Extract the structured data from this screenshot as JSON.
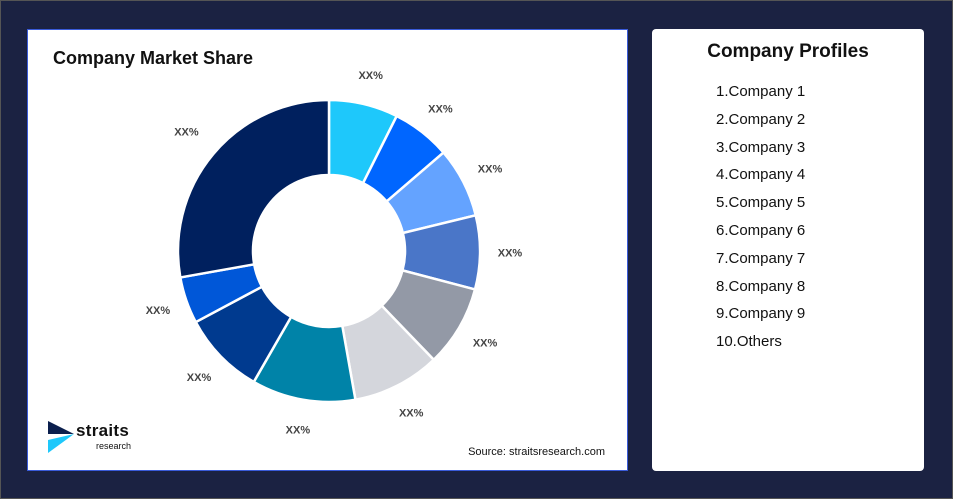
{
  "chart_data": {
    "type": "pie",
    "title": "Company Market Share",
    "donut": true,
    "categories": [
      "Company 1",
      "Company 2",
      "Company 3",
      "Company 4",
      "Company 5",
      "Company 6",
      "Company 7",
      "Company 8",
      "Company 9",
      "Others"
    ],
    "values": [
      7.4,
      6.3,
      7.5,
      7.9,
      8.7,
      9.4,
      11.1,
      8.9,
      5.0,
      27.8
    ],
    "data_labels": [
      "XX%",
      "XX%",
      "XX%",
      "XX%",
      "XX%",
      "XX%",
      "XX%",
      "XX%",
      "XX%",
      "XX%"
    ],
    "colors": [
      "#1ec8fb",
      "#0066ff",
      "#64a3ff",
      "#4a76c8",
      "#9399a6",
      "#d4d6dc",
      "#0083a8",
      "#003a8f",
      "#0057d8",
      "#00205e"
    ]
  },
  "source": "Source: straitsresearch.com",
  "logo": {
    "text": "straits",
    "subtext": "research"
  },
  "profiles": {
    "title": "Company Profiles",
    "items": [
      "1.Company 1",
      "2.Company 2",
      "3.Company 3",
      "4.Company 4",
      "5.Company 5",
      "6.Company 6",
      "7.Company 7",
      "8.Company 8",
      "9.Company 9",
      "10.Others"
    ]
  }
}
